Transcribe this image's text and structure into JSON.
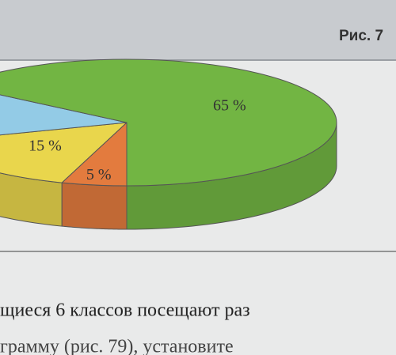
{
  "header": "Рис. 7",
  "chart_data": {
    "type": "pie",
    "values": [
      5,
      15,
      15,
      65
    ],
    "value_labels": [
      "5 %",
      "15 %",
      null,
      "65 %"
    ],
    "colors": [
      "#e37b3e",
      "#e9d64c",
      "#93cbe6",
      "#72b543"
    ]
  },
  "text": [
    "щиеся 6 классов посещают раз",
    "грамму (рис. 79), установите"
  ]
}
